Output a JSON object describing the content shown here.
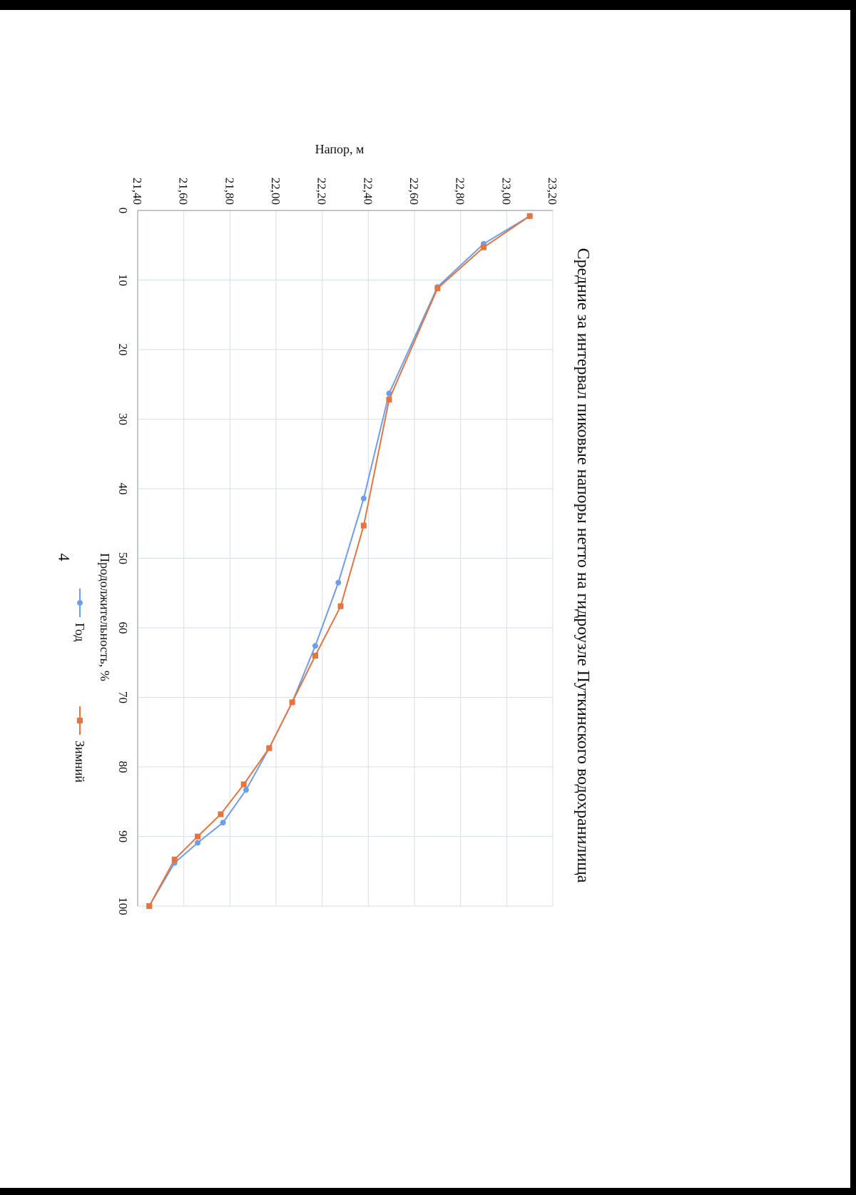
{
  "page": {
    "number": "4"
  },
  "chart_data": {
    "type": "line",
    "title": "Средние за интервал пиковые напоры нетто на гидроузле Путкинского водохранилища",
    "xlabel": "Продолжительность, %",
    "ylabel": "Напор, м",
    "xlim": [
      0,
      100
    ],
    "ylim": [
      21.4,
      23.2
    ],
    "x_ticks": [
      "0",
      "10",
      "20",
      "30",
      "40",
      "50",
      "60",
      "70",
      "80",
      "90",
      "100"
    ],
    "y_ticks": [
      "21,40",
      "21,60",
      "21,80",
      "22,00",
      "22,20",
      "22,40",
      "22,60",
      "22,80",
      "23,00",
      "23,20"
    ],
    "grid": true,
    "legend_position": "bottom",
    "series": [
      {
        "name": "Год",
        "color": "#6d9eeb",
        "marker": "circle",
        "x": [
          0.8,
          4.8,
          11.0,
          26.3,
          41.4,
          53.5,
          62.6,
          70.7,
          77.3,
          83.3,
          88.0,
          90.9,
          93.8,
          100
        ],
        "y": [
          23.1,
          22.9,
          22.7,
          22.49,
          22.38,
          22.27,
          22.17,
          22.07,
          21.97,
          21.87,
          21.77,
          21.66,
          21.56,
          21.45
        ]
      },
      {
        "name": "Зимний",
        "color": "#e5743f",
        "marker": "square",
        "x": [
          0.8,
          5.3,
          11.2,
          27.2,
          45.3,
          56.9,
          64.0,
          70.7,
          77.3,
          82.5,
          86.8,
          90.0,
          93.3,
          100
        ],
        "y": [
          23.1,
          22.9,
          22.7,
          22.49,
          22.38,
          22.28,
          22.17,
          22.07,
          21.97,
          21.86,
          21.76,
          21.66,
          21.56,
          21.45
        ]
      }
    ]
  }
}
